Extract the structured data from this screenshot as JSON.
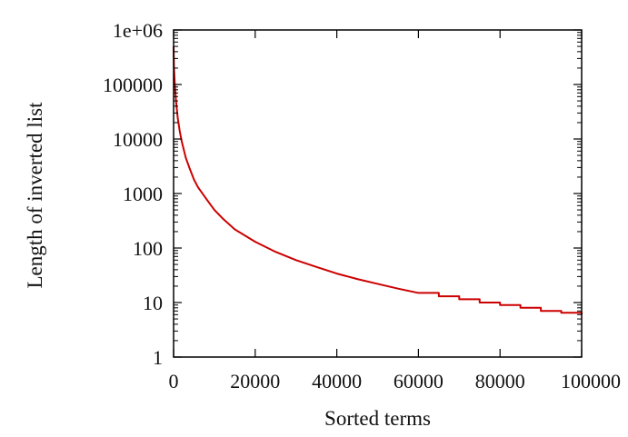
{
  "chart_data": {
    "type": "line",
    "title": "",
    "xlabel": "Sorted terms",
    "ylabel": "Length of inverted list",
    "xlim": [
      0,
      100000
    ],
    "ylim": [
      1,
      1000000
    ],
    "yscale": "log",
    "grid": false,
    "legend": "none",
    "x_ticks": [
      0,
      20000,
      40000,
      60000,
      80000,
      100000
    ],
    "x_tick_labels": [
      "0",
      "20000",
      "40000",
      "60000",
      "80000",
      "100000"
    ],
    "y_ticks": [
      1,
      10,
      100,
      1000,
      10000,
      100000,
      1000000
    ],
    "y_tick_labels": [
      "1",
      "10",
      "100",
      "1000",
      "10000",
      "100000",
      "1e+06"
    ],
    "series": [
      {
        "color": "#cc0000",
        "x": [
          1,
          100,
          300,
          600,
          1000,
          1500,
          2000,
          3000,
          4000,
          5000,
          6000,
          8000,
          10000,
          12000,
          15000,
          20000,
          25000,
          30000,
          35000,
          40000,
          45000,
          50000,
          55000,
          60000,
          65000,
          70000,
          75000,
          80000,
          85000,
          90000,
          95000,
          100000
        ],
        "y": [
          500000,
          200000,
          100000,
          50000,
          25000,
          14000,
          9000,
          4500,
          2800,
          1800,
          1300,
          800,
          500,
          350,
          220,
          130,
          85,
          60,
          45,
          34,
          27,
          22,
          18,
          15,
          13,
          11.5,
          10,
          9,
          8,
          7,
          6.5,
          6
        ]
      }
    ]
  }
}
